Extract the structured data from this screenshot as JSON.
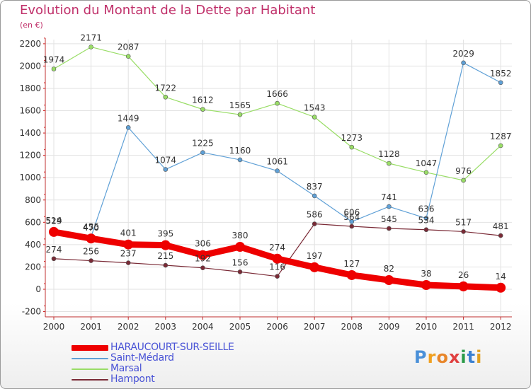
{
  "title": "Evolution du Montant de la Dette par Habitant",
  "subtitle": "(en €)",
  "logo": {
    "text": "Proxiti",
    "letters": [
      {
        "ch": "P",
        "color": "#4a90d9"
      },
      {
        "ch": "r",
        "color": "#f0a020"
      },
      {
        "ch": "o",
        "color": "#e8862a"
      },
      {
        "ch": "x",
        "color": "#e04040"
      },
      {
        "ch": "i",
        "color": "#2a9a48"
      },
      {
        "ch": "t",
        "color": "#3a80d0"
      },
      {
        "ch": "i",
        "color": "#e0a020"
      }
    ]
  },
  "chart_data": {
    "type": "line",
    "title": "Evolution du Montant de la Dette par Habitant",
    "ylabel": "(en €)",
    "xlabel": "",
    "categories": [
      "2000",
      "2001",
      "2002",
      "2003",
      "2004",
      "2005",
      "2006",
      "2007",
      "2008",
      "2009",
      "2010",
      "2011",
      "2012"
    ],
    "ylim": [
      -200,
      2200
    ],
    "yticks": [
      -200,
      0,
      200,
      400,
      600,
      800,
      1000,
      1200,
      1400,
      1600,
      1800,
      2000,
      2200
    ],
    "grid": true,
    "legend_position": "bottom-left",
    "series": [
      {
        "name": "Marsal",
        "color": "#99dd66",
        "values": [
          1974,
          2171,
          2087,
          1722,
          1612,
          1565,
          1666,
          1543,
          1273,
          1128,
          1047,
          976,
          1287
        ]
      },
      {
        "name": "Saint-Médard",
        "color": "#5fa0d6",
        "values": [
          529,
          470,
          1449,
          1074,
          1225,
          1160,
          1061,
          837,
          606,
          741,
          636,
          2029,
          1852
        ]
      },
      {
        "name": "Hampont",
        "color": "#7a2a36",
        "values": [
          274,
          256,
          237,
          215,
          192,
          156,
          116,
          586,
          564,
          545,
          534,
          517,
          481
        ]
      },
      {
        "name": "HARAUCOURT-SUR-SEILLE",
        "color": "#ee0000",
        "values": [
          514,
          455,
          401,
          395,
          306,
          380,
          274,
          197,
          127,
          82,
          38,
          26,
          14
        ]
      }
    ]
  }
}
